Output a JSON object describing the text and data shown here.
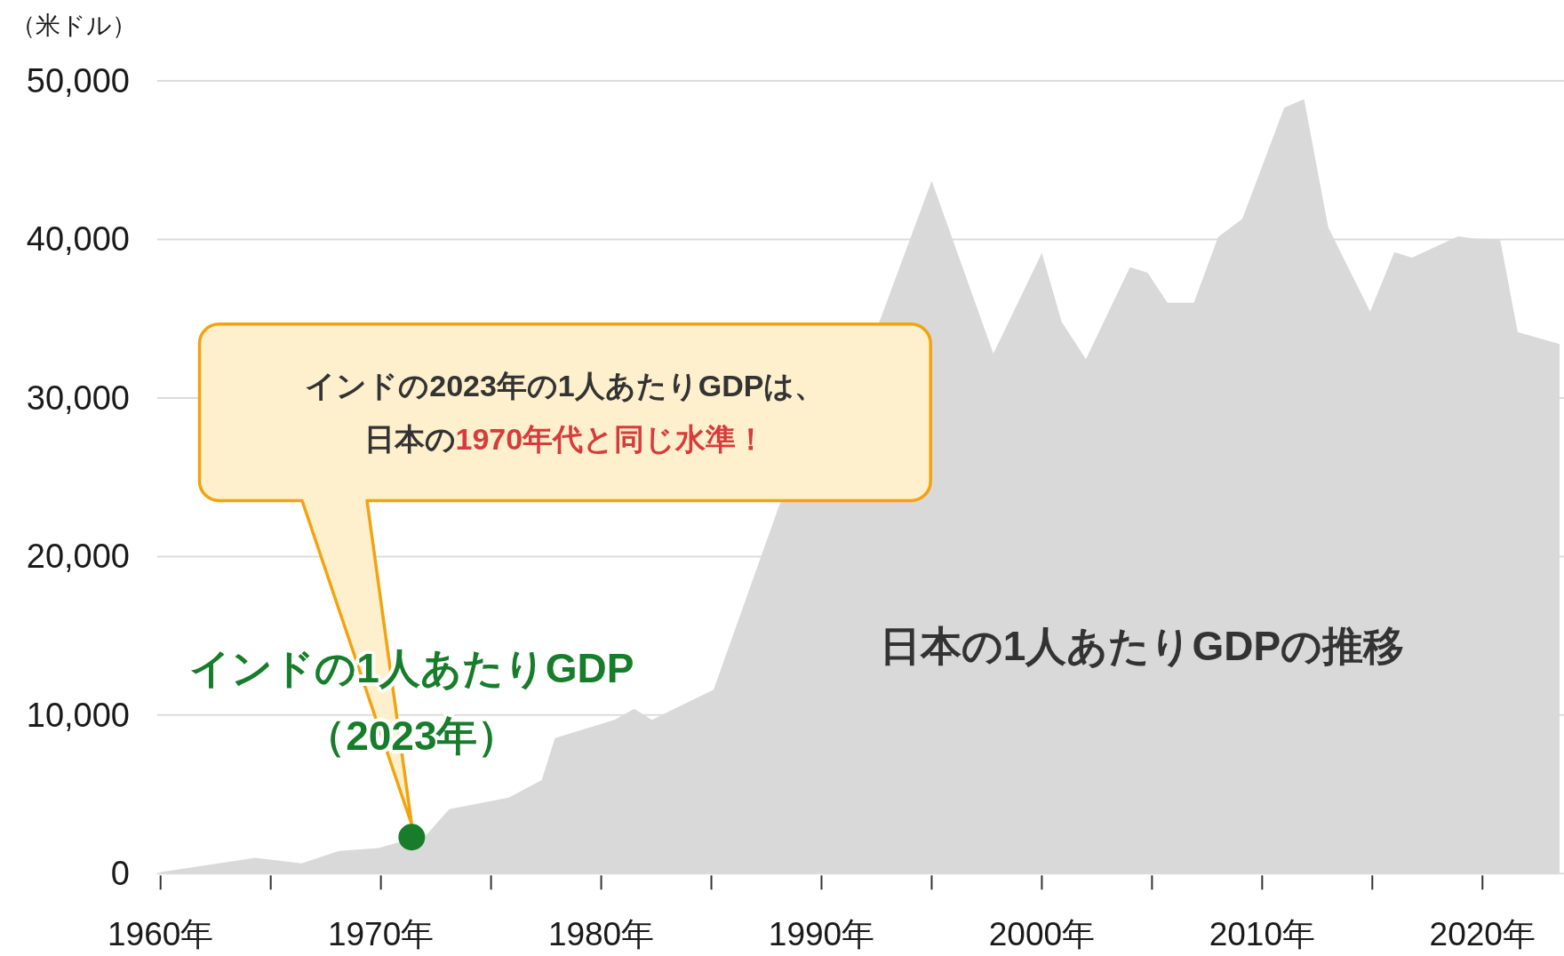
{
  "chart_data": {
    "type": "area",
    "ylabel": "（米ドル）",
    "xlim": [
      1960,
      2023.7
    ],
    "ylim": [
      0,
      50000
    ],
    "xticks": [
      {
        "value": 1960,
        "label": "1960年"
      },
      {
        "value": 1965,
        "label": null
      },
      {
        "value": 1970,
        "label": "1970年"
      },
      {
        "value": 1975,
        "label": null
      },
      {
        "value": 1980,
        "label": "1980年"
      },
      {
        "value": 1985,
        "label": null
      },
      {
        "value": 1990,
        "label": "1990年"
      },
      {
        "value": 1995,
        "label": null
      },
      {
        "value": 2000,
        "label": "2000年"
      },
      {
        "value": 2005,
        "label": null
      },
      {
        "value": 2010,
        "label": "2010年"
      },
      {
        "value": 2015,
        "label": null
      },
      {
        "value": 2020,
        "label": "2020年"
      }
    ],
    "yticks": [
      0,
      {
        "value": 10000,
        "label": "10,000"
      },
      {
        "value": 20000,
        "label": "20,000"
      },
      {
        "value": 30000,
        "label": "30,000"
      },
      {
        "value": 40000,
        "label": "40,000"
      },
      {
        "value": 50000,
        "label": "50,000"
      }
    ],
    "grid": "y",
    "series": [
      {
        "name": "日本の1人あたりGDPの推移",
        "color": "#d9d9d9",
        "x": [
          1960,
          1964.3,
          1966.4,
          1968.1,
          1969.9,
          1972.1,
          1973.1,
          1975.8,
          1977.3,
          1977.9,
          1980.6,
          1981.5,
          1982.3,
          1985.1,
          1988.1,
          1992.6,
          1995,
          1997.8,
          2000,
          2000.9,
          2002,
          2004,
          2004.8,
          2005.7,
          2006.9,
          2008,
          2009.1,
          2011,
          2011.9,
          2013,
          2014.9,
          2016,
          2016.8,
          2018.9,
          2019.6,
          2020.8,
          2021.6,
          2023.5
        ],
        "values": [
          100,
          1000,
          650,
          1430,
          1620,
          2500,
          4070,
          4800,
          5900,
          8550,
          9700,
          10400,
          9700,
          11600,
          23300,
          34700,
          43700,
          32800,
          39150,
          34800,
          32450,
          38250,
          37900,
          36000,
          36000,
          40150,
          41300,
          48300,
          48850,
          40750,
          35450,
          39200,
          38850,
          40200,
          40050,
          40000,
          34150,
          33400
        ]
      },
      {
        "name": "インドの1人あたりGDP（2023年）",
        "type": "scatter",
        "marker": "circle",
        "color": "#177d2a",
        "x": [
          1971.4
        ],
        "values": [
          2300
        ]
      }
    ],
    "annotations": [
      "インドの2023年の1人あたりGDPは、",
      "日本の",
      "1970年代と同じ水準！"
    ]
  }
}
